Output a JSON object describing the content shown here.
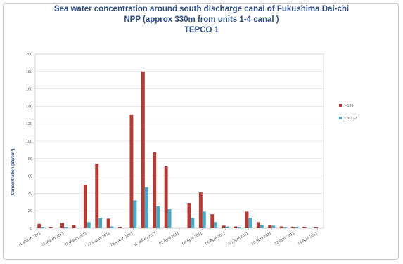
{
  "chart_data": {
    "type": "bar",
    "title_lines": [
      "Sea water concentration around south discharge canal of Fukushima Dai-chi",
      "NPP (approx 330m from units 1-4 canal )",
      "TEPCO 1"
    ],
    "xlabel": "",
    "ylabel": "Concentration (Bq/cm³)",
    "ylim": [
      0,
      200
    ],
    "yticks": [
      0,
      20,
      40,
      60,
      80,
      100,
      120,
      140,
      160,
      180,
      200
    ],
    "x_tick_labels": [
      "21 March 2011",
      "23 March 2011",
      "25 March 2011",
      "27 March 2011",
      "29 March 2011",
      "31 March 2011",
      "02 April 2011",
      "04 April 2011",
      "06 April 2011",
      "08 April 2011",
      "10 April 2011",
      "12 April 2011",
      "14 April 2011"
    ],
    "grid": true,
    "legend_position": "right",
    "colors": {
      "I-131": "#b23a35",
      "Cs-137": "#4aaac5"
    },
    "series": [
      {
        "name": "I-131",
        "values": [
          5,
          1,
          6,
          4,
          50,
          74,
          11,
          1,
          130,
          180,
          87,
          71,
          0,
          29,
          41,
          16,
          3,
          2,
          19,
          7,
          4,
          2,
          1,
          1,
          1
        ]
      },
      {
        "name": "Cs-137",
        "values": [
          1,
          0,
          1,
          0,
          7,
          12,
          2,
          0,
          32,
          47,
          25,
          22,
          0,
          12,
          19,
          7,
          2,
          1,
          12,
          4,
          3,
          1,
          1,
          0,
          0
        ]
      }
    ]
  }
}
